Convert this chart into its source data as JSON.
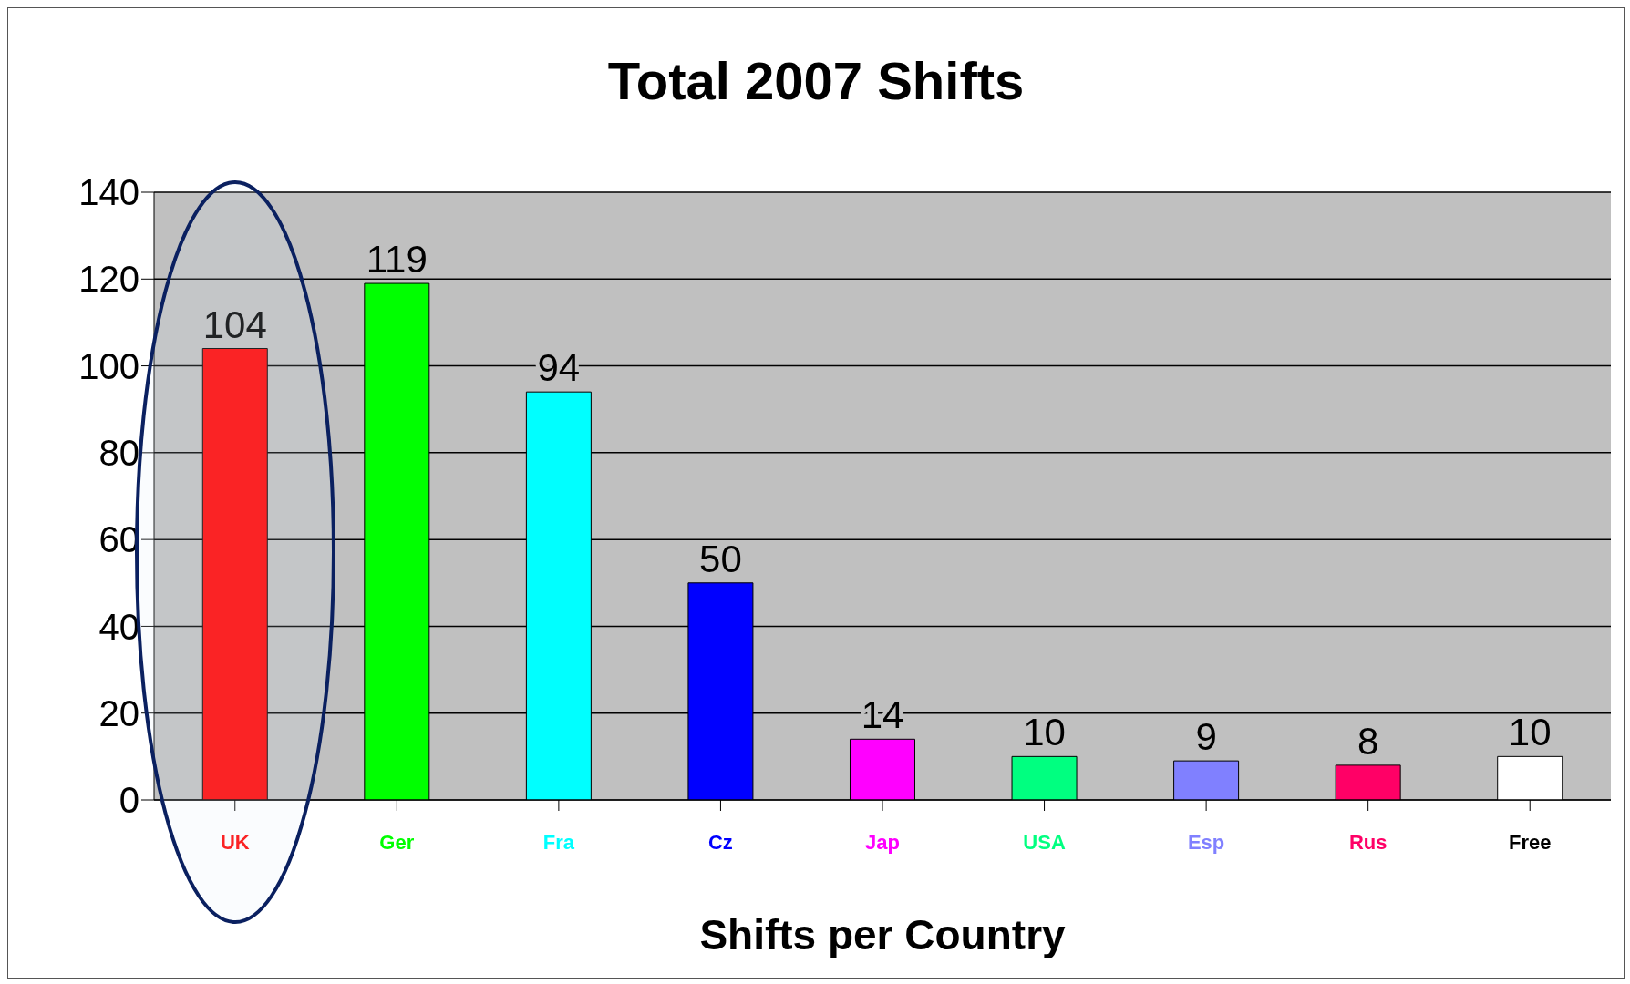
{
  "chart_data": {
    "type": "bar",
    "title": "Total 2007 Shifts",
    "xlabel": "Shifts per Country",
    "categories": [
      "UK",
      "Ger",
      "Fra",
      "Cz",
      "Jap",
      "USA",
      "Esp",
      "Rus",
      "Free"
    ],
    "values": [
      104,
      119,
      94,
      50,
      14,
      10,
      9,
      8,
      10
    ],
    "colors": [
      "#ff0000",
      "#00ff00",
      "#00ffff",
      "#0000ff",
      "#ff00ff",
      "#00ff80",
      "#8080ff",
      "#ff0066",
      "#ffffff"
    ],
    "ylim": [
      0,
      140
    ],
    "yticks": [
      0,
      20,
      40,
      60,
      80,
      100,
      120,
      140
    ],
    "grid": "y",
    "data_labels": true
  }
}
